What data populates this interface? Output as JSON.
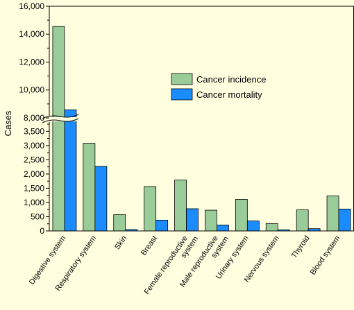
{
  "chart_data": {
    "type": "bar",
    "ylabel": "Cases",
    "axis_break": {
      "lower_max": 3800,
      "upper_min": 7900
    },
    "lower_ticks": [
      "500",
      "1,000",
      "1,500",
      "2,000",
      "2,500",
      "3,000",
      "3,500"
    ],
    "upper_ticks": [
      "8,000",
      "10,000",
      "12,000",
      "14,000",
      "16,000"
    ],
    "zero_tick": "0",
    "categories": [
      [
        "Digestive system"
      ],
      [
        "Respiratory system"
      ],
      [
        "Skin"
      ],
      [
        "Breast"
      ],
      [
        "Female reproductive",
        "system"
      ],
      [
        "Male reproductive",
        "system"
      ],
      [
        "Urinary system"
      ],
      [
        "Nervous system"
      ],
      [
        "Thyroid"
      ],
      [
        "Blood system"
      ]
    ],
    "series": [
      {
        "name": "Cancer incidence",
        "color": "#99cc99",
        "values": [
          14550,
          3080,
          570,
          1560,
          1790,
          730,
          1110,
          260,
          740,
          1230
        ]
      },
      {
        "name": "Cancer mortality",
        "color": "#1a8cff",
        "values": [
          8580,
          2270,
          50,
          380,
          780,
          210,
          350,
          40,
          80,
          770
        ]
      }
    ],
    "legend_position": "upper-right"
  }
}
